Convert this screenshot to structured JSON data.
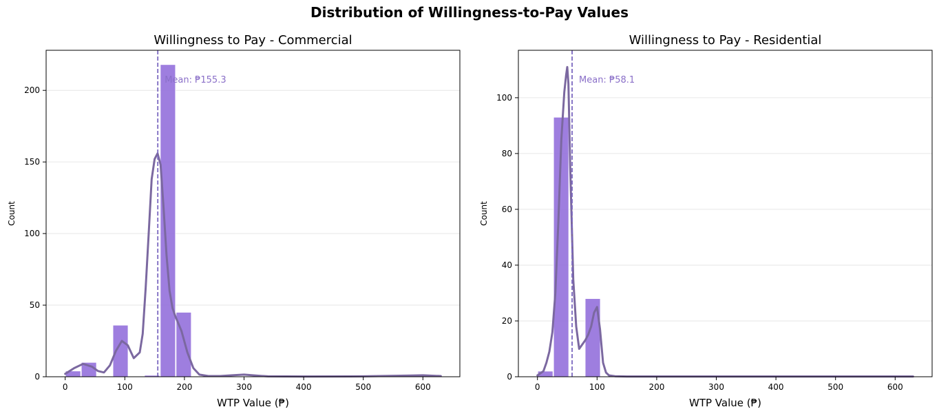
{
  "figure": {
    "title": "Distribution of Willingness-to-Pay Values"
  },
  "chart_data": [
    {
      "type": "bar",
      "title": "Willingness to Pay - Commercial",
      "xlabel": "WTP Value (₱)",
      "ylabel": "Count",
      "xlim": [
        -32,
        662
      ],
      "ylim": [
        0,
        228
      ],
      "xticks": [
        0,
        100,
        200,
        300,
        400,
        500,
        600
      ],
      "yticks": [
        0,
        50,
        100,
        150,
        200
      ],
      "grid": "y",
      "bar_color": "#9370DB",
      "kde_color": "#7B68A0",
      "bars": [
        {
          "x0": 0,
          "x1": 26.5,
          "count": 4
        },
        {
          "x0": 26.5,
          "x1": 53,
          "count": 10
        },
        {
          "x0": 79.5,
          "x1": 106,
          "count": 36
        },
        {
          "x0": 132.5,
          "x1": 159,
          "count": 1
        },
        {
          "x0": 159,
          "x1": 185.5,
          "count": 218
        },
        {
          "x0": 185.5,
          "x1": 212,
          "count": 45
        }
      ],
      "mean": 155.3,
      "mean_label": "Mean: ₱155.3",
      "kde": {
        "x": [
          0,
          15,
          30,
          45,
          55,
          65,
          75,
          85,
          95,
          105,
          115,
          125,
          130,
          135,
          140,
          145,
          150,
          155,
          160,
          165,
          170,
          175,
          180,
          185,
          195,
          205,
          215,
          225,
          240,
          260,
          280,
          300,
          320,
          340,
          400,
          500,
          580,
          600,
          630
        ],
        "y": [
          2,
          6,
          9,
          7,
          4,
          3,
          8,
          18,
          25,
          22,
          13,
          17,
          30,
          62,
          100,
          138,
          152,
          156,
          148,
          118,
          85,
          60,
          48,
          42,
          32,
          17,
          6,
          1.5,
          0.5,
          0.5,
          1,
          1.5,
          0.8,
          0.3,
          0.2,
          0.3,
          0.8,
          1,
          0.5
        ]
      }
    },
    {
      "type": "bar",
      "title": "Willingness to Pay - Residential",
      "xlabel": "WTP Value (₱)",
      "ylabel": "Count",
      "xlim": [
        -32,
        662
      ],
      "ylim": [
        0,
        117
      ],
      "xticks": [
        0,
        100,
        200,
        300,
        400,
        500,
        600
      ],
      "yticks": [
        0,
        20,
        40,
        60,
        80,
        100
      ],
      "grid": "y",
      "bar_color": "#9370DB",
      "kde_color": "#7B68A0",
      "bars": [
        {
          "x0": 0,
          "x1": 26.5,
          "count": 2
        },
        {
          "x0": 26.5,
          "x1": 53,
          "count": 93
        },
        {
          "x0": 79.5,
          "x1": 106,
          "count": 28
        }
      ],
      "mean": 58.1,
      "mean_label": "Mean: ₱58.1",
      "kde": {
        "x": [
          0,
          10,
          15,
          20,
          25,
          30,
          35,
          40,
          45,
          48,
          50,
          52,
          55,
          60,
          65,
          70,
          80,
          85,
          90,
          95,
          100,
          105,
          110,
          115,
          120,
          130,
          150,
          200,
          300,
          630
        ],
        "y": [
          0.5,
          2,
          5,
          9,
          16,
          30,
          55,
          85,
          102,
          108,
          111,
          105,
          75,
          35,
          18,
          10,
          13,
          15,
          18,
          23,
          25,
          17,
          5,
          1.5,
          0.5,
          0.2,
          0.1,
          0.1,
          0.1,
          0.1
        ]
      }
    }
  ]
}
